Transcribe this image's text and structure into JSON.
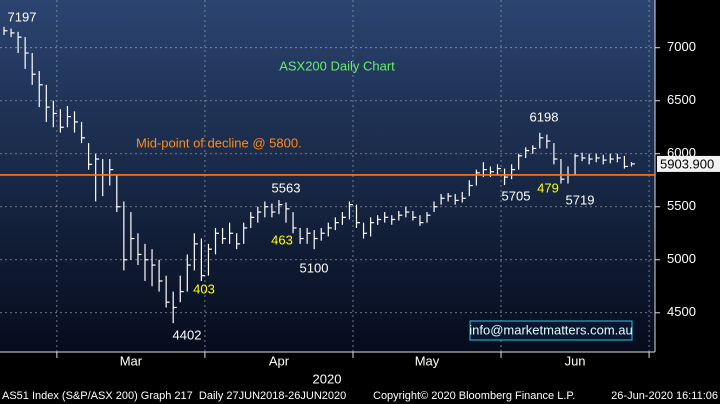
{
  "chart_data": {
    "type": "hlc",
    "title": "ASX200 Daily Chart",
    "level_label": "Mid-point of decline @ 5800.",
    "level": 5800,
    "last_price": 5903.9,
    "last_price_label": "5903.900",
    "contact": "info@marketmatters.com.au",
    "x_axis_label": "2020",
    "footer": [
      "AS51 Index (S&P/ASX 200) Graph 217  Daily 27JUN2018-26JUN2020",
      "Copyright© 2020 Bloomberg Finance L.P.",
      "26-Jun-2020 16:11:06"
    ],
    "annotations": [
      "7197",
      "4402",
      "403",
      "5563",
      "463",
      "5100",
      "5705",
      "479",
      "6198",
      "5719"
    ],
    "ylim": [
      4130,
      7450
    ],
    "yticks": [
      4500,
      5000,
      5500,
      6000,
      6500,
      7000
    ],
    "grid": true,
    "color": "#ffffff",
    "categories": [
      null,
      null,
      null,
      null,
      null,
      null,
      null,
      null,
      null,
      null,
      null,
      null,
      null,
      null,
      null,
      null,
      null,
      null,
      "Mar",
      null,
      null,
      null,
      null,
      null,
      null,
      null,
      null,
      null,
      null,
      null,
      null,
      null,
      null,
      null,
      null,
      null,
      null,
      null,
      null,
      "Apr",
      null,
      null,
      null,
      null,
      null,
      null,
      null,
      null,
      null,
      null,
      null,
      null,
      null,
      null,
      null,
      null,
      null,
      null,
      null,
      null,
      "May",
      null,
      null,
      null,
      null,
      null,
      null,
      null,
      null,
      null,
      null,
      null,
      null,
      null,
      null,
      null,
      null,
      null,
      null,
      null,
      null,
      "Jun",
      null,
      null,
      null,
      null,
      null,
      null,
      null,
      null
    ],
    "high": [
      7197,
      7180,
      7150,
      7100,
      6950,
      6780,
      6650,
      6500,
      6420,
      6450,
      6400,
      6300,
      6100,
      6000,
      5950,
      5950,
      5800,
      5550,
      5450,
      5250,
      5150,
      5100,
      5000,
      4850,
      4700,
      4850,
      5050,
      5250,
      5200,
      5150,
      5300,
      5300,
      5350,
      5250,
      5350,
      5450,
      5500,
      5550,
      5530,
      5563,
      5540,
      5450,
      5300,
      5300,
      5280,
      5300,
      5350,
      5400,
      5450,
      5550,
      5520,
      5350,
      5400,
      5420,
      5450,
      5420,
      5460,
      5500,
      5460,
      5420,
      5450,
      5550,
      5620,
      5630,
      5620,
      5640,
      5750,
      5850,
      5920,
      5880,
      5900,
      5860,
      5900,
      6000,
      6060,
      6080,
      6198,
      6180,
      6100,
      5950,
      5880,
      6000,
      6010,
      6000,
      6000,
      5990,
      6000,
      6000,
      5980,
      5920
    ],
    "low": [
      7120,
      7100,
      6950,
      6800,
      6650,
      6440,
      6300,
      6250,
      6200,
      6250,
      6200,
      6100,
      5850,
      5550,
      5600,
      5700,
      5450,
      4900,
      5000,
      4950,
      4800,
      4750,
      4700,
      4550,
      4402,
      4600,
      4700,
      4900,
      4800,
      4850,
      5050,
      5150,
      5150,
      5100,
      5150,
      5300,
      5350,
      5400,
      5400,
      5430,
      5350,
      5250,
      5150,
      5150,
      5100,
      5180,
      5220,
      5280,
      5330,
      5380,
      5300,
      5200,
      5220,
      5330,
      5350,
      5330,
      5370,
      5400,
      5370,
      5320,
      5350,
      5450,
      5520,
      5550,
      5520,
      5540,
      5600,
      5700,
      5780,
      5780,
      5800,
      5705,
      5760,
      5850,
      5960,
      6000,
      6050,
      6050,
      5900,
      5719,
      5719,
      5800,
      5930,
      5900,
      5920,
      5900,
      5910,
      5920,
      5860,
      5880
    ],
    "close": [
      7160,
      7140,
      7100,
      6950,
      6750,
      6650,
      6440,
      6380,
      6250,
      6350,
      6300,
      6150,
      5900,
      5950,
      5800,
      5850,
      5500,
      5000,
      5200,
      5050,
      5000,
      4950,
      4800,
      4600,
      4550,
      4700,
      4950,
      5150,
      4850,
      5100,
      5250,
      5200,
      5250,
      5150,
      5300,
      5400,
      5450,
      5500,
      5450,
      5520,
      5480,
      5300,
      5200,
      5250,
      5200,
      5250,
      5300,
      5350,
      5400,
      5520,
      5350,
      5250,
      5350,
      5380,
      5400,
      5380,
      5420,
      5450,
      5400,
      5350,
      5420,
      5500,
      5580,
      5600,
      5560,
      5580,
      5700,
      5820,
      5850,
      5830,
      5860,
      5780,
      5850,
      5980,
      6030,
      6050,
      6150,
      6120,
      5950,
      5760,
      5800,
      5980,
      5960,
      5950,
      5960,
      5940,
      5950,
      5960,
      5880,
      5904
    ]
  }
}
